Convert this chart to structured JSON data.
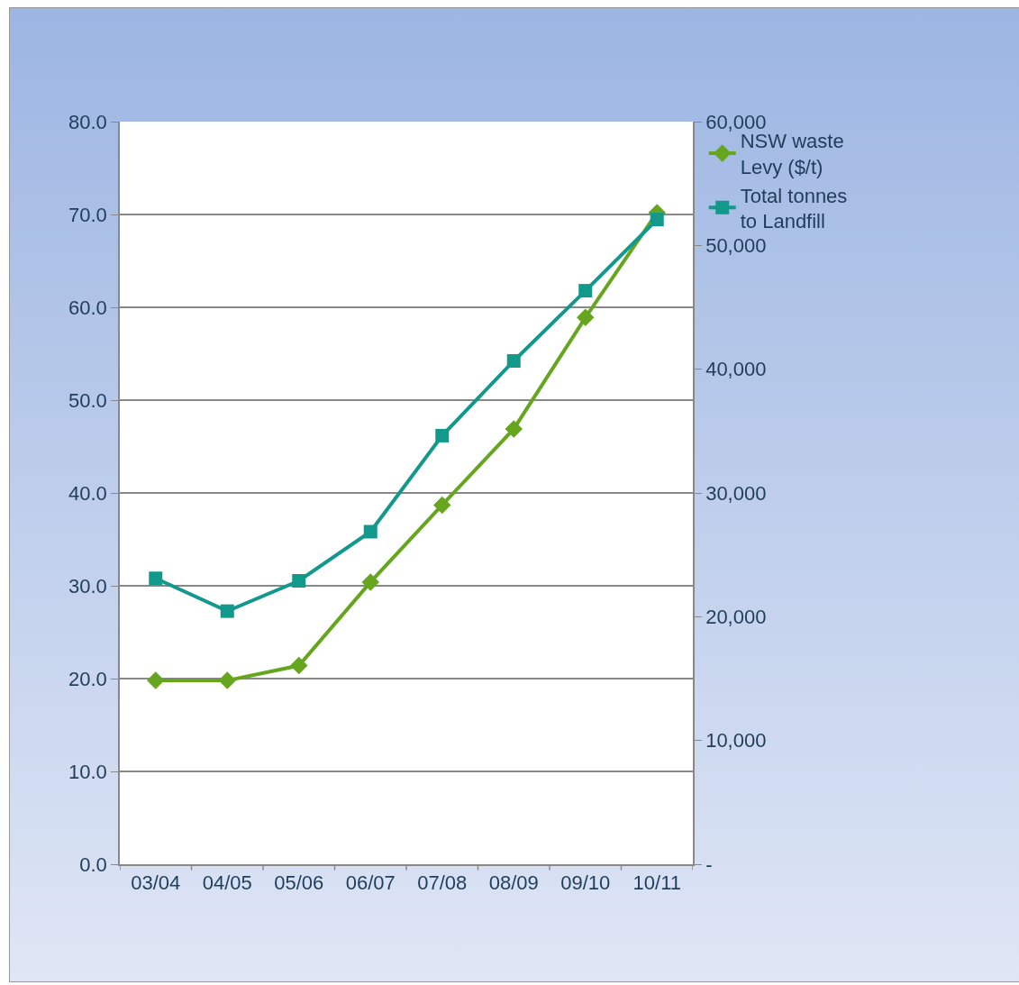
{
  "chart_data": {
    "type": "line",
    "categories": [
      "03/04",
      "04/05",
      "05/06",
      "06/07",
      "07/08",
      "08/09",
      "09/10",
      "10/11"
    ],
    "series": [
      {
        "name": "NSW waste Levy ($/t)",
        "color": "#66a61e",
        "marker": "diamond",
        "values": [
          19.8,
          19.8,
          21.4,
          30.4,
          38.7,
          46.9,
          58.9,
          70.2
        ]
      },
      {
        "name": "Total tonnes to Landfill",
        "color": "#12998c",
        "marker": "square",
        "axis": "y2",
        "values": [
          23100,
          20450,
          22900,
          26870,
          34630,
          40670,
          46340,
          52090
        ]
      }
    ],
    "ylim": [
      0,
      80
    ],
    "yticks": [
      {
        "value": 0,
        "label": "0.0"
      },
      {
        "value": 10,
        "label": "10.0"
      },
      {
        "value": 20,
        "label": "20.0"
      },
      {
        "value": 30,
        "label": "30.0"
      },
      {
        "value": 40,
        "label": "40.0"
      },
      {
        "value": 50,
        "label": "50.0"
      },
      {
        "value": 60,
        "label": "60.0"
      },
      {
        "value": 70,
        "label": "70.0"
      },
      {
        "value": 80,
        "label": "80.0"
      }
    ],
    "y2lim": [
      0,
      60000
    ],
    "y2ticks": [
      {
        "value": 0,
        "label": "-"
      },
      {
        "value": 10000,
        "label": "10,000"
      },
      {
        "value": 20000,
        "label": "20,000"
      },
      {
        "value": 30000,
        "label": "30,000"
      },
      {
        "value": 40000,
        "label": "40,000"
      },
      {
        "value": 50000,
        "label": "50,000"
      },
      {
        "value": 60000,
        "label": "60,000"
      }
    ],
    "grid": "y",
    "legend": "right",
    "line_style": "solid"
  }
}
